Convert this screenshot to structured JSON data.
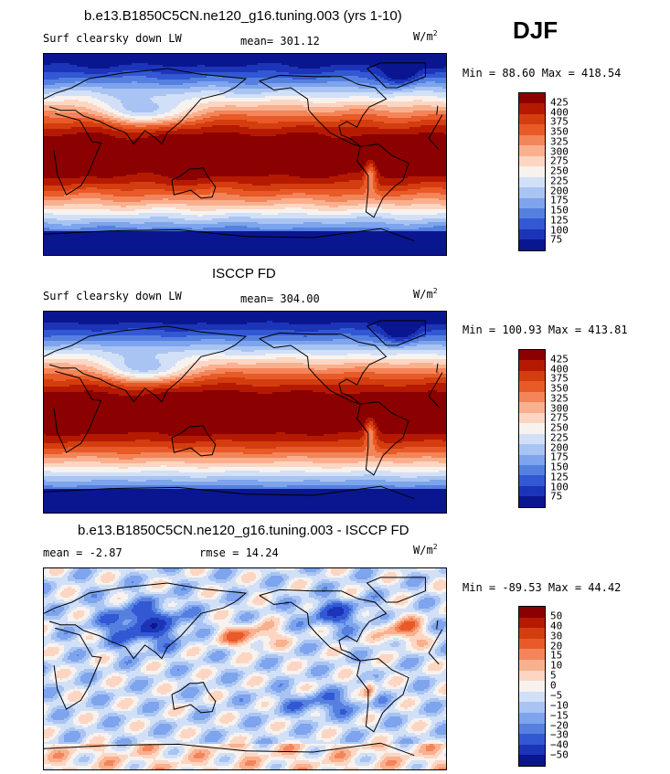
{
  "season": "DJF",
  "units": "W/m",
  "units_exp": "2",
  "chart_data": [
    {
      "type": "heatmap",
      "title": "b.e13.B1850C5CN.ne120_g16.tuning.003 (yrs 1-10)",
      "field": "Surf clearsky down LW",
      "mean_text": "mean= 301.12",
      "minmax_text": "Min =  88.60 Max = 418.54",
      "min": 88.6,
      "max": 418.54,
      "mean": 301.12,
      "levels": [
        "425",
        "400",
        "375",
        "350",
        "325",
        "300",
        "275",
        "250",
        "225",
        "200",
        "175",
        "150",
        "125",
        "100",
        "75"
      ],
      "colors": [
        "#8b0000",
        "#b51a00",
        "#d43d0f",
        "#e85a27",
        "#f4845a",
        "#f9b08f",
        "#fcd6c2",
        "#f7f2ee",
        "#d2e0f7",
        "#a9c4f2",
        "#7da4ec",
        "#5580e0",
        "#3358d3",
        "#1c35b8",
        "#0a1690"
      ]
    },
    {
      "type": "heatmap",
      "title": "ISCCP FD",
      "field": "Surf clearsky down LW",
      "mean_text": "mean= 304.00",
      "minmax_text": "Min = 100.93 Max = 413.81",
      "min": 100.93,
      "max": 413.81,
      "mean": 304.0,
      "levels": [
        "425",
        "400",
        "375",
        "350",
        "325",
        "300",
        "275",
        "250",
        "225",
        "200",
        "175",
        "150",
        "125",
        "100",
        "75"
      ],
      "colors": [
        "#8b0000",
        "#b51a00",
        "#d43d0f",
        "#e85a27",
        "#f4845a",
        "#f9b08f",
        "#fcd6c2",
        "#f7f2ee",
        "#d2e0f7",
        "#a9c4f2",
        "#7da4ec",
        "#5580e0",
        "#3358d3",
        "#1c35b8",
        "#0a1690"
      ]
    },
    {
      "type": "heatmap",
      "title": "b.e13.B1850C5CN.ne120_g16.tuning.003 - ISCCP FD",
      "field": "",
      "mean_text": "mean =  -2.87",
      "rmse_text": "rmse =  14.24",
      "minmax_text": "Min = -89.53 Max =  44.42",
      "min": -89.53,
      "max": 44.42,
      "mean": -2.87,
      "rmse": 14.24,
      "levels": [
        "50",
        "40",
        "30",
        "20",
        "15",
        "10",
        "5",
        "0",
        "−5",
        "−10",
        "−15",
        "−20",
        "−30",
        "−40",
        "−50"
      ],
      "colors": [
        "#8b0000",
        "#b51a00",
        "#d43d0f",
        "#e85a27",
        "#f4845a",
        "#f9b08f",
        "#fcd6c2",
        "#f7f2ee",
        "#d2e0f7",
        "#a9c4f2",
        "#7da4ec",
        "#5580e0",
        "#3358d3",
        "#1c35b8",
        "#0a1690"
      ]
    }
  ]
}
